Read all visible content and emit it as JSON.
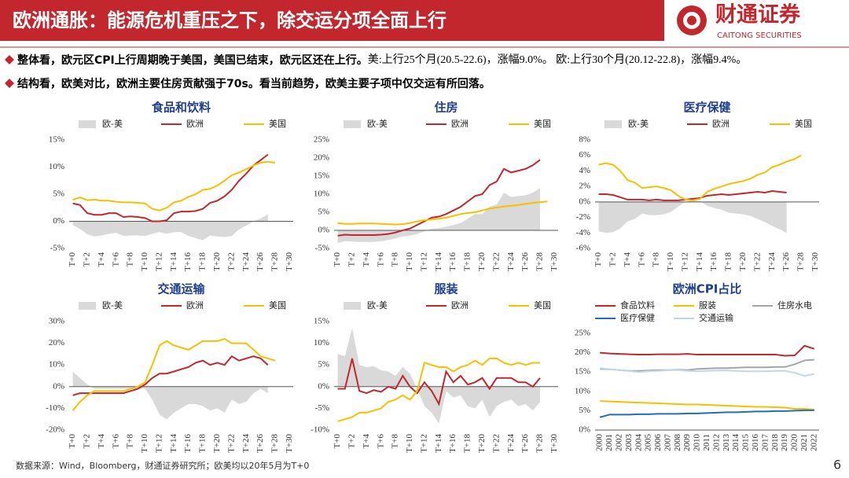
{
  "header": {
    "title": "欧洲通胀：能源危机重压之下，除交运分项全面上行",
    "logo_cn": "财通证券",
    "logo_en": "CAITONG SECURITIES"
  },
  "bullets": [
    {
      "bold": "整体看，欧元区CPI上行周期晚于美国，美国已结束，欧元区还在上行。",
      "text": "美:上行25个月(20.5-22.6)，涨幅9.0%。 欧:上行30个月(20.12-22.8)，涨幅9.4%。"
    },
    {
      "bold": "结构看，欧美对比，欧洲主要住房贡献强于70s。看当前趋势，欧美主要子项中仅交运有所回落。",
      "text": ""
    }
  ],
  "chart_data": [
    {
      "type": "combo",
      "title": "食品和饮料",
      "categories": [
        "T+0",
        null,
        "T+2",
        null,
        "T+4",
        null,
        "T+6",
        null,
        "T+8",
        null,
        "T+10",
        null,
        "T+12",
        null,
        "T+14",
        null,
        "T+16",
        null,
        "T+18",
        null,
        "T+20",
        null,
        "T+22",
        null,
        "T+24",
        null,
        "T+26",
        null,
        "T+28",
        null,
        "T+30"
      ],
      "ylim": [
        -5,
        15
      ],
      "yticks": [
        {
          "value": -5,
          "label": "-5%"
        },
        {
          "value": 0,
          "label": "0%"
        },
        {
          "value": 5,
          "label": "5%"
        },
        {
          "value": 10,
          "label": "10%"
        },
        {
          "value": 15,
          "label": "15%"
        }
      ],
      "series": [
        {
          "name": "欧-美",
          "mark": "area",
          "color": "#d9d9d9",
          "values": [
            -0.7,
            -1.4,
            -2.4,
            -2.8,
            -2.6,
            -2.3,
            -2.1,
            -2.7,
            -2.6,
            -2.6,
            -2.7,
            -2.3,
            -2.0,
            -2.3,
            -2.0,
            -2.0,
            -2.7,
            -3.1,
            -3.5,
            -2.6,
            -2.8,
            -2.9,
            -2.7,
            -1.5,
            -0.8,
            0,
            0.5,
            1.3,
            null,
            null,
            null
          ]
        },
        {
          "name": "欧洲",
          "mark": "line",
          "color": "#c0282d",
          "values": [
            3.3,
            3.0,
            1.5,
            1.2,
            1.2,
            1.5,
            1.5,
            0.8,
            0.9,
            0.8,
            0.6,
            0,
            0,
            0.2,
            1.5,
            1.8,
            1.8,
            1.9,
            2.3,
            3.4,
            3.8,
            4.6,
            5.8,
            7.5,
            8.8,
            10.3,
            11.3,
            12.3,
            null,
            null,
            null
          ]
        },
        {
          "name": "美国",
          "mark": "line",
          "color": "#f5c000",
          "values": [
            4.0,
            4.4,
            3.9,
            4.0,
            3.8,
            3.8,
            3.6,
            3.5,
            3.5,
            3.4,
            3.3,
            2.3,
            2.0,
            2.5,
            3.5,
            3.8,
            4.5,
            5.0,
            5.8,
            6.0,
            6.6,
            7.5,
            8.5,
            9.0,
            9.6,
            10.3,
            10.8,
            11.0,
            10.8,
            null,
            null
          ]
        }
      ]
    },
    {
      "type": "combo",
      "title": "住房",
      "categories": [
        "T+0",
        null,
        "T+2",
        null,
        "T+4",
        null,
        "T+6",
        null,
        "T+8",
        null,
        "T+10",
        null,
        "T+12",
        null,
        "T+14",
        null,
        "T+16",
        null,
        "T+18",
        null,
        "T+20",
        null,
        "T+22",
        null,
        "T+24",
        null,
        "T+26",
        null,
        "T+28",
        null,
        "T+30"
      ],
      "ylim": [
        -5,
        25
      ],
      "yticks": [
        {
          "value": -5,
          "label": "-5%"
        },
        {
          "value": 0,
          "label": "0%"
        },
        {
          "value": 5,
          "label": "5%"
        },
        {
          "value": 10,
          "label": "10%"
        },
        {
          "value": 15,
          "label": "15%"
        },
        {
          "value": 20,
          "label": "20%"
        },
        {
          "value": 25,
          "label": "25%"
        }
      ],
      "series": [
        {
          "name": "欧-美",
          "mark": "area",
          "color": "#d9d9d9",
          "values": [
            -3.5,
            -3.0,
            -3.1,
            -3.2,
            -3.2,
            -3.2,
            -3.0,
            -2.7,
            -2.2,
            -1.7,
            -1.5,
            -1.0,
            -0.3,
            0.5,
            0.6,
            1.0,
            1.5,
            2.0,
            3.2,
            4.5,
            4.5,
            6.5,
            7.2,
            10.4,
            9.2,
            9.5,
            9.7,
            10.4,
            11.7,
            null,
            null
          ]
        },
        {
          "name": "欧洲",
          "mark": "line",
          "color": "#c0282d",
          "values": [
            -1.5,
            -1.2,
            -1.3,
            -1.3,
            -1.3,
            -1.3,
            -1.2,
            -1.0,
            -0.6,
            0,
            0.5,
            1.5,
            2.5,
            3.5,
            3.8,
            4.5,
            5.5,
            6.5,
            8.0,
            9.5,
            10.0,
            12.5,
            13.5,
            17.0,
            16.0,
            16.5,
            17.0,
            18.0,
            19.5,
            null,
            null
          ]
        },
        {
          "name": "美国",
          "mark": "line",
          "color": "#f5c000",
          "values": [
            2.0,
            1.8,
            1.8,
            1.9,
            1.9,
            1.9,
            1.8,
            1.7,
            1.6,
            1.7,
            2.0,
            2.5,
            2.8,
            3.0,
            3.2,
            3.5,
            4.0,
            4.5,
            4.8,
            5.0,
            5.5,
            6.0,
            6.3,
            6.6,
            6.8,
            7.0,
            7.3,
            7.6,
            7.8,
            8.0,
            null
          ]
        }
      ]
    },
    {
      "type": "combo",
      "title": "医疗保健",
      "categories": [
        "T+0",
        null,
        "T+2",
        null,
        "T+4",
        null,
        "T+6",
        null,
        "T+8",
        null,
        "T+10",
        null,
        "T+12",
        null,
        "T+14",
        null,
        "T+16",
        null,
        "T+18",
        null,
        "T+20",
        null,
        "T+22",
        null,
        "T+24",
        null,
        "T+26",
        null,
        "T+28",
        null,
        "T+30"
      ],
      "ylim": [
        -6,
        8
      ],
      "yticks": [
        {
          "value": -6,
          "label": "-6%"
        },
        {
          "value": -4,
          "label": "-4%"
        },
        {
          "value": -2,
          "label": "-2%"
        },
        {
          "value": 0,
          "label": "0%"
        },
        {
          "value": 2,
          "label": "2%"
        },
        {
          "value": 4,
          "label": "4%"
        },
        {
          "value": 6,
          "label": "6%"
        },
        {
          "value": 8,
          "label": "8%"
        }
      ],
      "series": [
        {
          "name": "欧-美",
          "mark": "area",
          "color": "#d9d9d9",
          "values": [
            -3.8,
            -4.0,
            -3.9,
            -3.4,
            -2.5,
            -2.2,
            -1.5,
            -1.7,
            -1.7,
            -1.6,
            -1.3,
            -0.6,
            0,
            0.2,
            0.1,
            -0.5,
            -0.8,
            -1.0,
            -1.4,
            -1.5,
            -1.6,
            -1.8,
            -2.2,
            -2.6,
            -3.1,
            -3.5,
            -4.0,
            null,
            null,
            null,
            null
          ]
        },
        {
          "name": "欧洲",
          "mark": "line",
          "color": "#c0282d",
          "values": [
            1.0,
            1.0,
            0.9,
            0.6,
            0.3,
            0.3,
            0.3,
            0.2,
            0.3,
            0.2,
            0.2,
            0.2,
            0.3,
            0.4,
            0.5,
            0.8,
            0.9,
            1.0,
            0.9,
            1.0,
            1.1,
            1.2,
            1.3,
            1.2,
            1.4,
            1.3,
            1.2,
            null,
            null,
            null,
            null
          ]
        },
        {
          "name": "美国",
          "mark": "line",
          "color": "#f5c000",
          "values": [
            4.8,
            5.0,
            4.8,
            4.0,
            2.8,
            2.5,
            1.8,
            1.9,
            2.0,
            1.8,
            1.5,
            0.8,
            0.3,
            0.2,
            0.4,
            1.3,
            1.7,
            2.0,
            2.3,
            2.5,
            2.7,
            3.0,
            3.5,
            3.8,
            4.5,
            4.8,
            5.2,
            5.5,
            6.0,
            null,
            null
          ]
        }
      ]
    },
    {
      "type": "combo",
      "title": "交通运输",
      "categories": [
        "T+0",
        null,
        "T+2",
        null,
        "T+4",
        null,
        "T+6",
        null,
        "T+8",
        null,
        "T+10",
        null,
        "T+12",
        null,
        "T+14",
        null,
        "T+16",
        null,
        "T+18",
        null,
        "T+20",
        null,
        "T+22",
        null,
        "T+24",
        null,
        "T+26",
        null,
        "T+28",
        null,
        "T+30"
      ],
      "ylim": [
        -20,
        30
      ],
      "yticks": [
        {
          "value": -20,
          "label": "-20%"
        },
        {
          "value": -10,
          "label": "-10%"
        },
        {
          "value": 0,
          "label": "0%"
        },
        {
          "value": 10,
          "label": "10%"
        },
        {
          "value": 20,
          "label": "20%"
        },
        {
          "value": 30,
          "label": "30%"
        }
      ],
      "series": [
        {
          "name": "欧-美",
          "mark": "area",
          "color": "#d9d9d9",
          "values": [
            7,
            4,
            1,
            -1,
            -1,
            -1,
            -1,
            -1,
            -1,
            -1,
            -1,
            -6,
            -13,
            -15,
            -12,
            -10,
            -8,
            -8,
            -9,
            -11,
            -10,
            -12,
            -6,
            -8,
            -7,
            -3,
            -1,
            -3,
            null,
            null,
            null
          ]
        },
        {
          "name": "欧洲",
          "mark": "line",
          "color": "#c0282d",
          "values": [
            -4,
            -3,
            -3,
            -3,
            -3,
            -3,
            -3,
            -3,
            -2,
            -1,
            1,
            4,
            6,
            6,
            7,
            8,
            9,
            11,
            12,
            10,
            11,
            10,
            14,
            12,
            13,
            14,
            13,
            10,
            null,
            null,
            null
          ]
        },
        {
          "name": "美国",
          "mark": "line",
          "color": "#f5c000",
          "values": [
            -11,
            -7,
            -4,
            -2,
            -2,
            -2,
            -2,
            -2,
            -1,
            0,
            2,
            10,
            19,
            21,
            19,
            18,
            17,
            19,
            21,
            21,
            21,
            22,
            20,
            20,
            20,
            17,
            14,
            13,
            12,
            null,
            null
          ]
        }
      ]
    },
    {
      "type": "combo",
      "title": "服装",
      "categories": [
        "T+0",
        null,
        "T+2",
        null,
        "T+4",
        null,
        "T+6",
        null,
        "T+8",
        null,
        "T+10",
        null,
        "T+12",
        null,
        "T+14",
        null,
        "T+16",
        null,
        "T+18",
        null,
        "T+20",
        null,
        "T+22",
        null,
        "T+24",
        null,
        "T+26",
        null,
        "T+28",
        null,
        "T+30"
      ],
      "ylim": [
        -10,
        15
      ],
      "yticks": [
        {
          "value": -10,
          "label": "-10%"
        },
        {
          "value": -5,
          "label": "-5%"
        },
        {
          "value": 0,
          "label": "0%"
        },
        {
          "value": 5,
          "label": "5%"
        },
        {
          "value": 10,
          "label": "10%"
        },
        {
          "value": 15,
          "label": "15%"
        }
      ],
      "series": [
        {
          "name": "欧-美",
          "mark": "area",
          "color": "#d9d9d9",
          "values": [
            7.5,
            7,
            13.5,
            5,
            4.5,
            4.7,
            3.8,
            3.5,
            2.5,
            4.5,
            3,
            -0.5,
            -4.5,
            -6,
            -8.5,
            -1,
            -2.5,
            -2,
            -4.5,
            -5,
            -3,
            -7,
            -4.5,
            -3.5,
            -3,
            -4.5,
            -4,
            -5.5,
            -3.5,
            null,
            null
          ]
        },
        {
          "name": "欧洲",
          "mark": "line",
          "color": "#c0282d",
          "values": [
            -0.5,
            -0.5,
            6.5,
            -1,
            -1.5,
            -0.8,
            -1.2,
            0,
            -0.5,
            2.5,
            0,
            -1.5,
            1,
            -1,
            -4,
            3.5,
            1,
            2.5,
            0.5,
            1,
            2,
            -0.5,
            2,
            2,
            2,
            1,
            1,
            0,
            2,
            null,
            null
          ]
        },
        {
          "name": "美国",
          "mark": "line",
          "color": "#f5c000",
          "values": [
            -8,
            -7.5,
            -7,
            -6,
            -6,
            -5.5,
            -5,
            -3.5,
            -3,
            -2,
            -3,
            -1,
            5.5,
            5,
            4.5,
            4.5,
            3.5,
            4.5,
            5,
            6,
            5,
            6.5,
            6.5,
            5.5,
            5,
            5.5,
            5,
            5.5,
            5.5,
            null,
            null
          ]
        }
      ]
    },
    {
      "type": "line",
      "title": "欧洲CPI占比",
      "categories": [
        "2000",
        "2001",
        "2002",
        "2003",
        "2004",
        "2005",
        "2006",
        "2007",
        "2008",
        "2009",
        "2010",
        "2011",
        "2012",
        "2013",
        "2014",
        "2015",
        "2016",
        "2017",
        "2018",
        "2019",
        "2020",
        "2021",
        "2022"
      ],
      "ylim": [
        0,
        25
      ],
      "yticks": [
        {
          "value": 0,
          "label": "0%"
        },
        {
          "value": 5,
          "label": "5%"
        },
        {
          "value": 10,
          "label": "10%"
        },
        {
          "value": 15,
          "label": "15%"
        },
        {
          "value": 20,
          "label": "20%"
        },
        {
          "value": 25,
          "label": "25%"
        }
      ],
      "series": [
        {
          "name": "食品饮料",
          "mark": "line",
          "color": "#c0282d",
          "values": [
            20,
            19.8,
            19.7,
            19.6,
            19.5,
            19.5,
            19.6,
            19.6,
            19.6,
            19.7,
            19.5,
            19.5,
            19.5,
            19.5,
            19.5,
            19.5,
            19.5,
            19.5,
            19.5,
            19.2,
            19.3,
            21.8,
            21.0
          ]
        },
        {
          "name": "服装",
          "mark": "line",
          "color": "#f5c000",
          "values": [
            7.5,
            7.4,
            7.3,
            7.2,
            7.1,
            7.0,
            6.9,
            6.8,
            6.7,
            6.6,
            6.6,
            6.5,
            6.4,
            6.3,
            6.2,
            6.1,
            6.0,
            6.0,
            5.9,
            5.8,
            5.5,
            5.5,
            5.3
          ]
        },
        {
          "name": "住房水电",
          "mark": "line",
          "color": "#a5a5a5",
          "values": [
            15.8,
            15.7,
            15.5,
            15.3,
            15.3,
            15.4,
            15.5,
            15.5,
            15.6,
            15.5,
            15.8,
            15.9,
            16.0,
            16.0,
            16.1,
            16.2,
            16.2,
            16.2,
            16.3,
            16.3,
            17.0,
            18.0,
            18.2
          ]
        },
        {
          "name": "医疗保健",
          "mark": "line",
          "color": "#1f6fbf",
          "values": [
            3.3,
            4.0,
            4.0,
            4.0,
            4.1,
            4.1,
            4.2,
            4.2,
            4.2,
            4.3,
            4.3,
            4.4,
            4.5,
            4.6,
            4.6,
            4.7,
            4.8,
            4.8,
            4.9,
            4.9,
            5.0,
            5.1,
            5.1
          ]
        },
        {
          "name": "交通运输",
          "mark": "line",
          "color": "#bdd7ee",
          "values": [
            16.0,
            15.7,
            15.5,
            15.3,
            15.0,
            15.2,
            15.3,
            15.5,
            15.5,
            15.3,
            15.2,
            15.3,
            15.4,
            15.4,
            15.3,
            15.2,
            15.2,
            15.2,
            15.3,
            15.3,
            14.8,
            14.0,
            14.5
          ]
        }
      ]
    }
  ],
  "footer": {
    "source": "数据来源：Wind，Bloomberg，财通证券研究所；欧美均以20年5月为T+0",
    "page": "6"
  }
}
